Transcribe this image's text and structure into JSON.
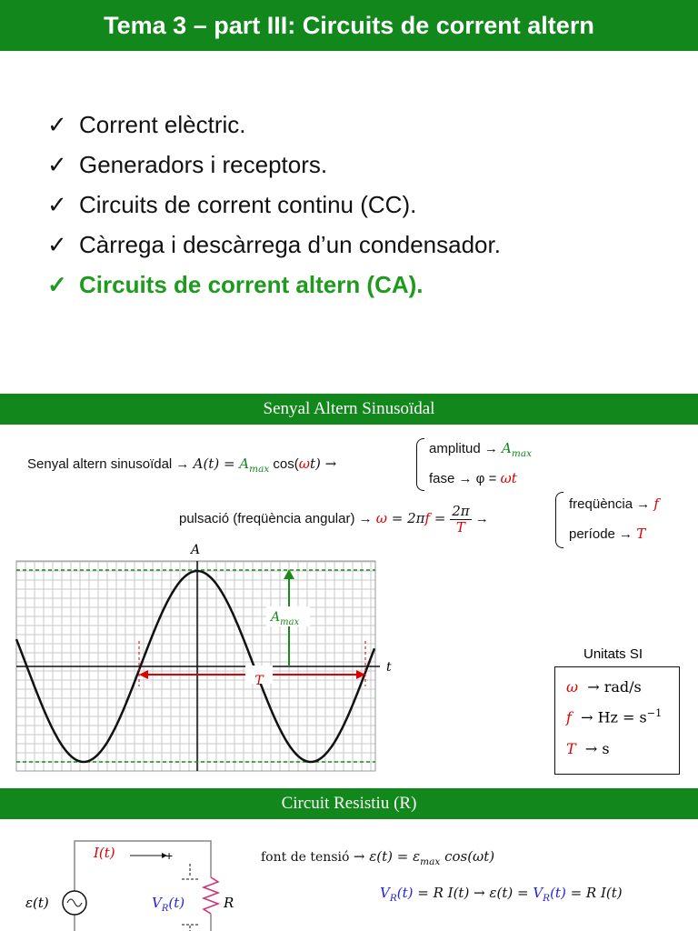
{
  "header": {
    "title": "Tema 3 – part III: Circuits de corrent altern"
  },
  "checklist": {
    "mark": "✓",
    "items": [
      "Corrent elèctric.",
      "Generadors i receptors.",
      "Circuits de corrent continu (CC).",
      "Càrrega i descàrrega d’un condensador.",
      "Circuits de corrent altern (CA)."
    ]
  },
  "section1": {
    "title": "Senyal Altern Sinusoïdal",
    "line1": {
      "label": "Senyal altern sinusoïdal → ",
      "lhs": "A(t) = ",
      "amp": "A",
      "amp_sub": "max",
      "cos": " cos(",
      "omega": "ω",
      "rest": "t) →"
    },
    "brace1": {
      "amplitude": "amplitud → ",
      "amp": "A",
      "amp_sub": "max",
      "phase": "fase → φ = ",
      "phase_value": "ωt"
    },
    "line2": {
      "label": "pulsació (freqüència angular) → ",
      "omega": "ω",
      "eq": " = 2π",
      "f": "f",
      "eq2": " = ",
      "num": "2π",
      "den": "T",
      "arrow": " →"
    },
    "brace2": {
      "frequency": "freqüència → ",
      "f": "f",
      "period": "període → ",
      "T": "T"
    },
    "graph": {
      "y_label": "A",
      "x_label": "t",
      "amp": "A",
      "amp_sub": "max",
      "period": "T"
    },
    "units": {
      "title": "Unitats SI",
      "rows": [
        {
          "symbol": "ω",
          "unit": "→ rad/s"
        },
        {
          "symbol": "f",
          "unit": "→ Hz = s",
          "sup": "−1"
        },
        {
          "symbol": "T",
          "unit": "→ s"
        }
      ]
    }
  },
  "section2": {
    "title": "Circuit Resistiu (R)",
    "circuit": {
      "current": "I(t)",
      "plus": "+",
      "source": "ε(t)",
      "vr": "V",
      "vr_sub": "R",
      "vr_rest": "(t)",
      "resistor": "R"
    },
    "formula1": {
      "label": "font de tensió ",
      "rest": "→ ε(t) = ε",
      "sub": "max",
      "end": " cos(ωt)"
    },
    "formula2": {
      "v1": "V",
      "v1_sub": "R",
      "v1_rest": "(t)",
      "mid": " = R I(t) → ε(t) = ",
      "v2": "V",
      "v2_sub": "R",
      "v2_rest": "(t)",
      "end": " = R I(t)"
    }
  }
}
